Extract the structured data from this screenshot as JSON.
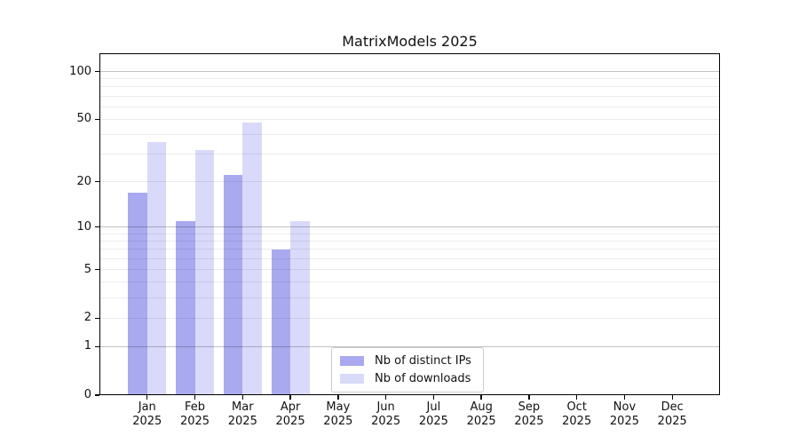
{
  "chart_data": {
    "type": "bar",
    "title": "MatrixModels 2025",
    "categories": [
      "Jan",
      "Feb",
      "Mar",
      "Apr",
      "May",
      "Jun",
      "Jul",
      "Aug",
      "Sep",
      "Oct",
      "Nov",
      "Dec"
    ],
    "x_year_label": "2025",
    "series": [
      {
        "name": "Nb of distinct IPs",
        "color": "#a9a9f0",
        "values": [
          17,
          11,
          22,
          7,
          0,
          0,
          0,
          0,
          0,
          0,
          0,
          0
        ]
      },
      {
        "name": "Nb of downloads",
        "color": "#d9d9fa",
        "values": [
          36,
          32,
          48,
          11,
          0,
          0,
          0,
          0,
          0,
          0,
          0,
          0
        ]
      }
    ],
    "y_axis": {
      "scale": "log1p",
      "tick_labels": [
        "0",
        "1",
        "2",
        "5",
        "10",
        "20",
        "50",
        "100"
      ],
      "tick_values": [
        0,
        1,
        2,
        5,
        10,
        20,
        50,
        100
      ],
      "major_gridlines": [
        1,
        10,
        100
      ],
      "minor_gridlines": [
        2,
        3,
        4,
        5,
        6,
        7,
        8,
        9,
        20,
        30,
        40,
        50,
        60,
        70,
        80,
        90
      ],
      "ylim": [
        0,
        130
      ]
    },
    "legend": {
      "position": "inside-bottom-center",
      "entries": [
        "Nb of distinct IPs",
        "Nb of downloads"
      ]
    },
    "grid": true
  },
  "style_colors": {
    "bar_distinct_ips": "#a9a9f0",
    "bar_downloads": "#d9d9fa",
    "axis": "#000000",
    "text": "#111111",
    "legend_border": "#cccccc"
  }
}
